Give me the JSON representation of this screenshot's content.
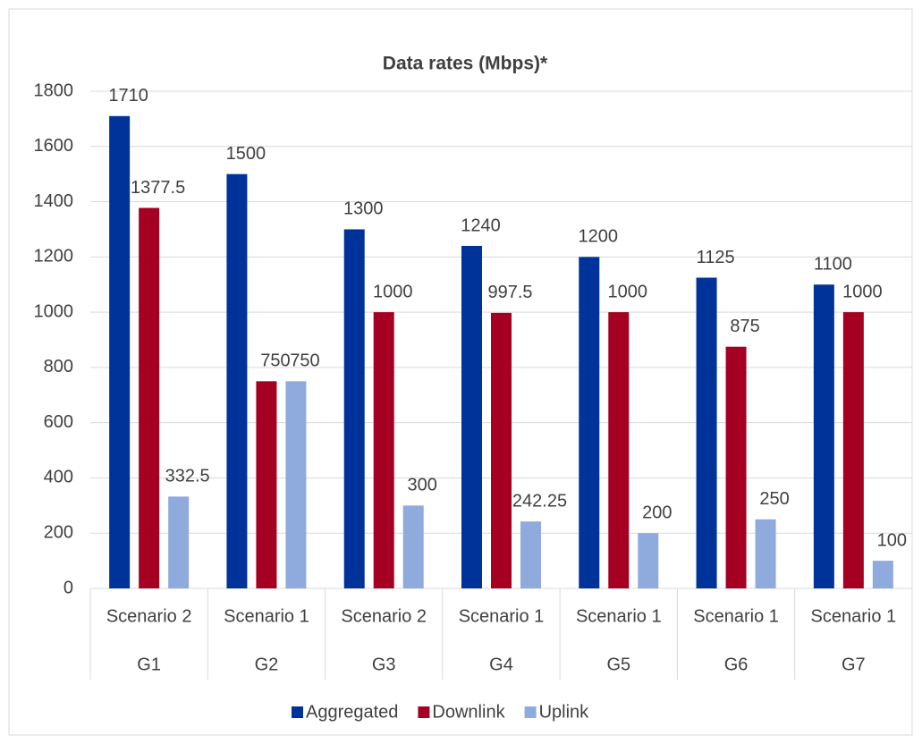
{
  "chart_data": {
    "type": "bar",
    "title": "Data rates (Mbps)*",
    "categories": [
      "Scenario 2",
      "Scenario 1",
      "Scenario 2",
      "Scenario 1",
      "Scenario 1",
      "Scenario 1",
      "Scenario 1"
    ],
    "category_groups": [
      "G1",
      "G2",
      "G3",
      "G4",
      "G5",
      "G6",
      "G7"
    ],
    "series": [
      {
        "name": "Aggregated",
        "color": "#003399",
        "values": [
          1710,
          1500,
          1300,
          1240,
          1200,
          1125,
          1100
        ]
      },
      {
        "name": "Downlink",
        "color": "#a50021",
        "values": [
          1377.5,
          750,
          1000,
          997.5,
          1000,
          875,
          1000
        ]
      },
      {
        "name": "Uplink",
        "color": "#8faadc",
        "values": [
          332.5,
          750,
          300,
          242.25,
          200,
          250,
          100
        ]
      }
    ],
    "ylim": [
      0,
      1800
    ],
    "yticks": [
      0,
      200,
      400,
      600,
      800,
      1000,
      1200,
      1400,
      1600,
      1800
    ],
    "grid": true,
    "legend": "bottom"
  }
}
